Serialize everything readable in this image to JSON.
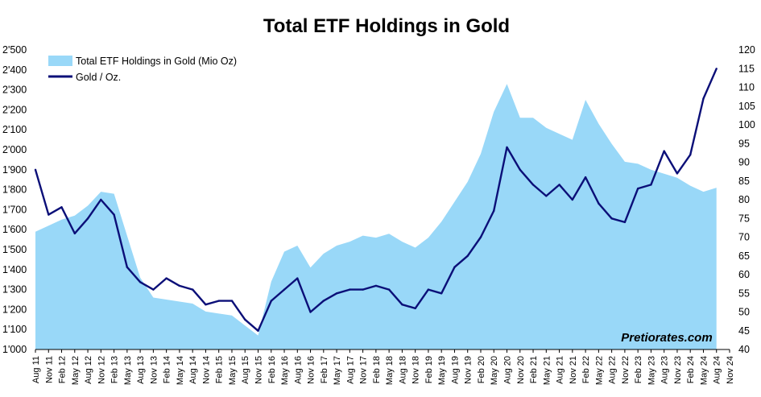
{
  "chart_data": {
    "type": "area",
    "title": "Total ETF Holdings in Gold",
    "watermark": "Pretiorates.com",
    "legend_position": "top-left",
    "grid": false,
    "colors": {
      "area": "#99d8f8",
      "line": "#0b0f78",
      "title": "#000000"
    },
    "x_ticks": [
      "Aug 11",
      "Nov 11",
      "Feb 12",
      "May 12",
      "Aug 12",
      "Nov 12",
      "Feb 13",
      "May 13",
      "Aug 13",
      "Nov 13",
      "Feb 14",
      "May 14",
      "Aug 14",
      "Nov 14",
      "Feb 15",
      "May 15",
      "Aug 15",
      "Nov 15",
      "Feb 16",
      "May 16",
      "Aug 16",
      "Nov 16",
      "Feb 17",
      "May 17",
      "Aug 17",
      "Nov 17",
      "Feb 18",
      "May 18",
      "Aug 18",
      "Nov 18",
      "Feb 19",
      "May 19",
      "Aug 19",
      "Nov 19",
      "Feb 20",
      "May 20",
      "Aug 20",
      "Nov 20",
      "Feb 21",
      "May 21",
      "Aug 21",
      "Nov 21",
      "Feb 22",
      "May 22",
      "Aug 22",
      "Nov 22",
      "Feb 23",
      "May 23",
      "Aug 23",
      "Nov 23",
      "Feb 24",
      "May 24",
      "Aug 24",
      "Nov 24"
    ],
    "y_left": {
      "ylim": [
        1000,
        2500
      ],
      "ticks": [
        "1'000",
        "1'100",
        "1'200",
        "1'300",
        "1'400",
        "1'500",
        "1'600",
        "1'700",
        "1'800",
        "1'900",
        "2'000",
        "2'100",
        "2'200",
        "2'300",
        "2'400",
        "2'500"
      ]
    },
    "y_right": {
      "ylim": [
        40,
        120
      ],
      "ticks": [
        "40",
        "45",
        "50",
        "55",
        "60",
        "65",
        "70",
        "75",
        "80",
        "85",
        "90",
        "95",
        "100",
        "105",
        "110",
        "115",
        "120"
      ]
    },
    "series": [
      {
        "name": "Total ETF Holdings in Gold (Mio Oz)",
        "type": "area",
        "axis": "left",
        "x": [
          "Aug 11",
          "Nov 11",
          "Feb 12",
          "May 12",
          "Aug 12",
          "Nov 12",
          "Feb 13",
          "May 13",
          "Aug 13",
          "Nov 13",
          "Feb 14",
          "May 14",
          "Aug 14",
          "Nov 14",
          "Feb 15",
          "May 15",
          "Aug 15",
          "Nov 15",
          "Feb 16",
          "May 16",
          "Aug 16",
          "Nov 16",
          "Feb 17",
          "May 17",
          "Aug 17",
          "Nov 17",
          "Feb 18",
          "May 18",
          "Aug 18",
          "Nov 18",
          "Feb 19",
          "May 19",
          "Aug 19",
          "Nov 19",
          "Feb 20",
          "May 20",
          "Aug 20",
          "Nov 20",
          "Feb 21",
          "May 21",
          "Aug 21",
          "Nov 21",
          "Feb 22",
          "May 22",
          "Aug 22",
          "Nov 22",
          "Feb 23",
          "May 23",
          "Aug 23",
          "Nov 23",
          "Feb 24",
          "May 24",
          "Aug 24"
        ],
        "values": [
          1590,
          1620,
          1650,
          1670,
          1720,
          1790,
          1780,
          1570,
          1360,
          1260,
          1250,
          1240,
          1230,
          1190,
          1180,
          1170,
          1120,
          1070,
          1340,
          1490,
          1520,
          1410,
          1480,
          1520,
          1540,
          1570,
          1560,
          1580,
          1540,
          1510,
          1560,
          1640,
          1740,
          1840,
          1980,
          2190,
          2330,
          2160,
          2160,
          2110,
          2080,
          2050,
          2250,
          2130,
          2030,
          1940,
          1930,
          1900,
          1880,
          1860,
          1820,
          1790,
          1810
        ]
      },
      {
        "name": "Gold / Oz.",
        "type": "line",
        "axis": "right",
        "x": [
          "Aug 11",
          "Nov 11",
          "Feb 12",
          "May 12",
          "Aug 12",
          "Nov 12",
          "Feb 13",
          "May 13",
          "Aug 13",
          "Nov 13",
          "Feb 14",
          "May 14",
          "Aug 14",
          "Nov 14",
          "Feb 15",
          "May 15",
          "Aug 15",
          "Nov 15",
          "Feb 16",
          "May 16",
          "Aug 16",
          "Nov 16",
          "Feb 17",
          "May 17",
          "Aug 17",
          "Nov 17",
          "Feb 18",
          "May 18",
          "Aug 18",
          "Nov 18",
          "Feb 19",
          "May 19",
          "Aug 19",
          "Nov 19",
          "Feb 20",
          "May 20",
          "Aug 20",
          "Nov 20",
          "Feb 21",
          "May 21",
          "Aug 21",
          "Nov 21",
          "Feb 22",
          "May 22",
          "Aug 22",
          "Nov 22",
          "Feb 23",
          "May 23",
          "Aug 23",
          "Nov 23",
          "Feb 24",
          "May 24",
          "Aug 24"
        ],
        "values": [
          88,
          76,
          78,
          71,
          75,
          80,
          76,
          62,
          58,
          56,
          59,
          57,
          56,
          52,
          53,
          53,
          48,
          45,
          53,
          56,
          59,
          50,
          53,
          55,
          56,
          56,
          57,
          56,
          52,
          51,
          56,
          55,
          62,
          65,
          70,
          77,
          94,
          88,
          84,
          81,
          84,
          80,
          86,
          79,
          75,
          74,
          83,
          84,
          93,
          87,
          92,
          107,
          115
        ]
      }
    ]
  }
}
